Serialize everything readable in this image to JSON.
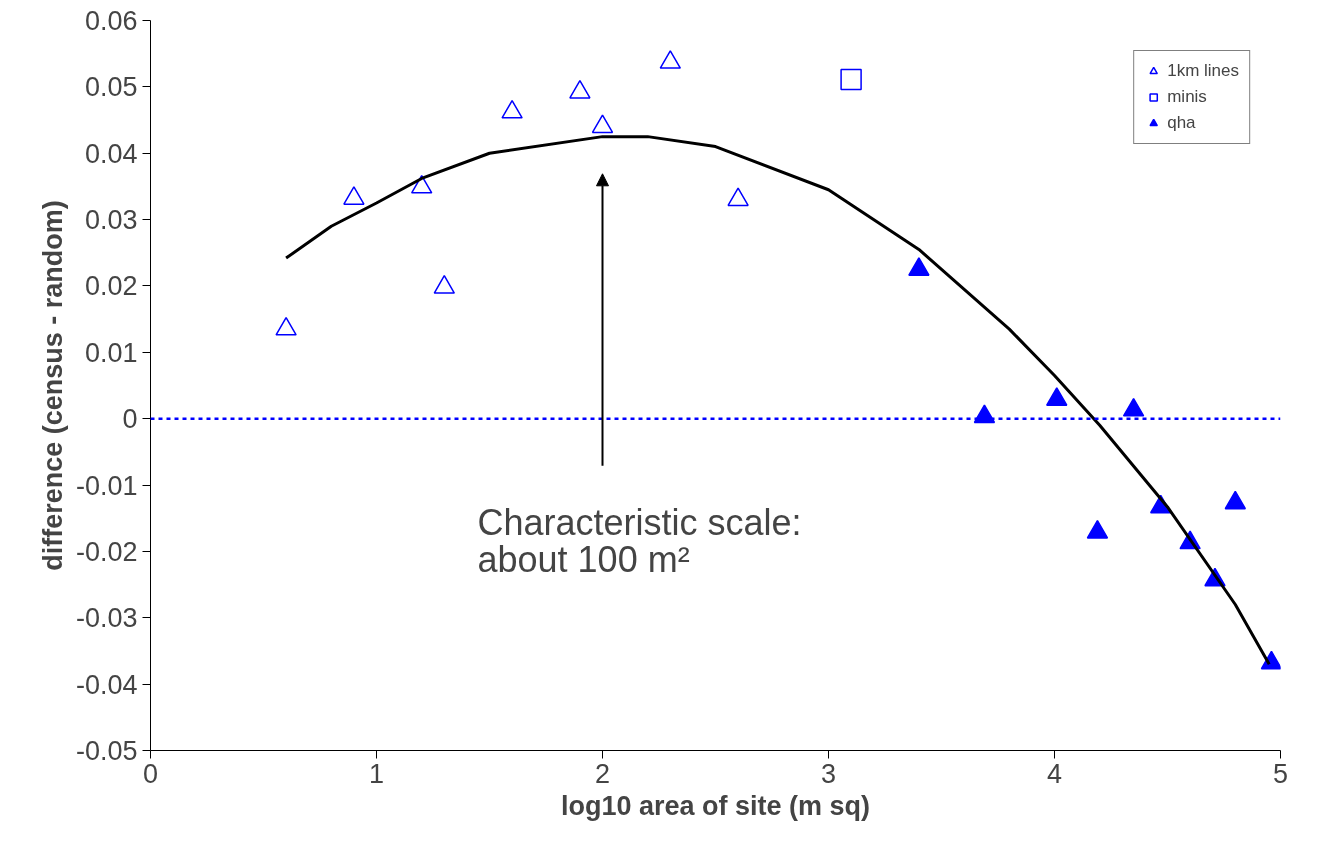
{
  "chart_data": {
    "type": "scatter",
    "xlabel": "log10 area of site (m sq)",
    "ylabel": "difference (census - random)",
    "xlim": [
      0,
      5
    ],
    "ylim": [
      -0.05,
      0.06
    ],
    "xticks": [
      0,
      1,
      2,
      3,
      4,
      5
    ],
    "yticks": [
      -0.05,
      -0.04,
      -0.03,
      -0.02,
      -0.01,
      0,
      0.01,
      0.02,
      0.03,
      0.04,
      0.05,
      0.06
    ],
    "grid": false,
    "legend": "top right",
    "series": [
      {
        "name": "1km lines",
        "marker": "triangle",
        "color": "#0000ff",
        "x": [
          0.6,
          0.9,
          1.2,
          1.3,
          1.6,
          1.9,
          2.0,
          2.3,
          2.6
        ],
        "values": [
          0.0135,
          0.0332,
          0.0349,
          0.0198,
          0.0462,
          0.0492,
          0.044,
          0.0537,
          0.033
        ]
      },
      {
        "name": "minis",
        "marker": "square",
        "color": "#0000ff",
        "x": [
          3.1
        ],
        "values": [
          0.0511
        ]
      },
      {
        "name": "qha",
        "marker": "triangle",
        "color": "#0000ff",
        "x": [
          3.4,
          3.69,
          4.01,
          4.19,
          4.35,
          4.47,
          4.6,
          4.71,
          4.8,
          4.96
        ],
        "values": [
          0.0225,
          0.0003,
          0.0029,
          -0.0171,
          0.0013,
          -0.0133,
          -0.0187,
          -0.0243,
          -0.0127,
          -0.0368
        ]
      },
      {
        "type": "line",
        "color": "#000000",
        "line_style": "solid",
        "marker": "none",
        "x": [
          0.6,
          0.8,
          1.0,
          1.2,
          1.5,
          2.0,
          2.2,
          2.5,
          3.0,
          3.4,
          3.8,
          4.0,
          4.2,
          4.5,
          4.8,
          4.95
        ],
        "values": [
          0.0242,
          0.029,
          0.0325,
          0.0362,
          0.04,
          0.0425,
          0.0425,
          0.041,
          0.0345,
          0.0255,
          0.0135,
          0.0065,
          -0.001,
          -0.0133,
          -0.028,
          -0.037
        ]
      }
    ],
    "ref_lines": [
      {
        "axis": "y",
        "value": 0,
        "color": "#0000ff",
        "line_style": "dashed"
      }
    ],
    "annotations": [
      "Characteristic scale:\nabout 100 m²"
    ]
  }
}
